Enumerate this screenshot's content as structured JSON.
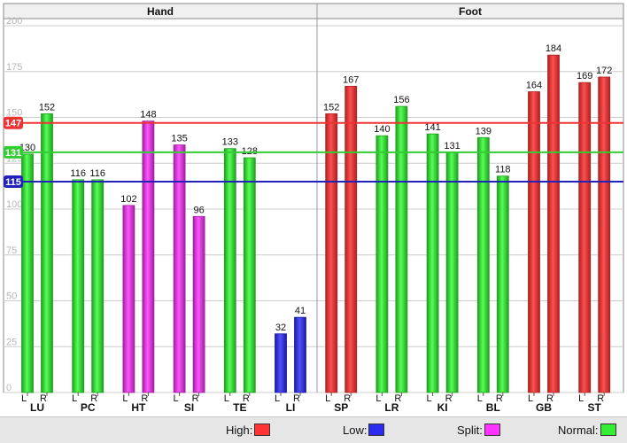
{
  "chart_data": {
    "type": "bar",
    "panels": [
      {
        "title": "Hand",
        "groups": [
          "LU",
          "PC",
          "HT",
          "SI",
          "TE",
          "LI"
        ]
      },
      {
        "title": "Foot",
        "groups": [
          "SP",
          "LR",
          "KI",
          "BL",
          "GB",
          "ST"
        ]
      }
    ],
    "side_labels": [
      "L",
      "R"
    ],
    "bars": [
      {
        "group": "LU",
        "L": 130,
        "R": 152,
        "L_status": "Normal",
        "R_status": "Normal"
      },
      {
        "group": "PC",
        "L": 116,
        "R": 116,
        "L_status": "Normal",
        "R_status": "Normal"
      },
      {
        "group": "HT",
        "L": 102,
        "R": 148,
        "L_status": "Split",
        "R_status": "Split"
      },
      {
        "group": "SI",
        "L": 135,
        "R": 96,
        "L_status": "Split",
        "R_status": "Split"
      },
      {
        "group": "TE",
        "L": 133,
        "R": 128,
        "L_status": "Normal",
        "R_status": "Normal"
      },
      {
        "group": "LI",
        "L": 32,
        "R": 41,
        "L_status": "Low",
        "R_status": "Low"
      },
      {
        "group": "SP",
        "L": 152,
        "R": 167,
        "L_status": "High",
        "R_status": "High"
      },
      {
        "group": "LR",
        "L": 140,
        "R": 156,
        "L_status": "Normal",
        "R_status": "Normal"
      },
      {
        "group": "KI",
        "L": 141,
        "R": 131,
        "L_status": "Normal",
        "R_status": "Normal"
      },
      {
        "group": "BL",
        "L": 139,
        "R": 118,
        "L_status": "Normal",
        "R_status": "Normal"
      },
      {
        "group": "GB",
        "L": 164,
        "R": 184,
        "L_status": "High",
        "R_status": "High"
      },
      {
        "group": "ST",
        "L": 169,
        "R": 172,
        "L_status": "High",
        "R_status": "High"
      }
    ],
    "reference_lines": [
      {
        "value": 147,
        "label": "147",
        "color": "#ee3333"
      },
      {
        "value": 131,
        "label": "131",
        "color": "#33cc33"
      },
      {
        "value": 115,
        "label": "115",
        "color": "#2222bb"
      }
    ],
    "ylim": [
      0,
      200
    ],
    "yticks": [
      0,
      25,
      50,
      75,
      100,
      125,
      150,
      175,
      200
    ],
    "grid": true,
    "legend_position": "bottom",
    "legend": [
      {
        "label": "High:",
        "status": "High",
        "color": "#ff3333"
      },
      {
        "label": "Low:",
        "status": "Low",
        "color": "#2a2af0"
      },
      {
        "label": "Split:",
        "status": "Split",
        "color": "#ff33ff"
      },
      {
        "label": "Normal:",
        "status": "Normal",
        "color": "#33ee33"
      }
    ],
    "status_colors": {
      "High": [
        "#ff5050",
        "#b02020"
      ],
      "Low": [
        "#5050ff",
        "#1a1aa0"
      ],
      "Split": [
        "#ff55ff",
        "#a020a0"
      ],
      "Normal": [
        "#55ff55",
        "#1f9f1f"
      ]
    }
  }
}
